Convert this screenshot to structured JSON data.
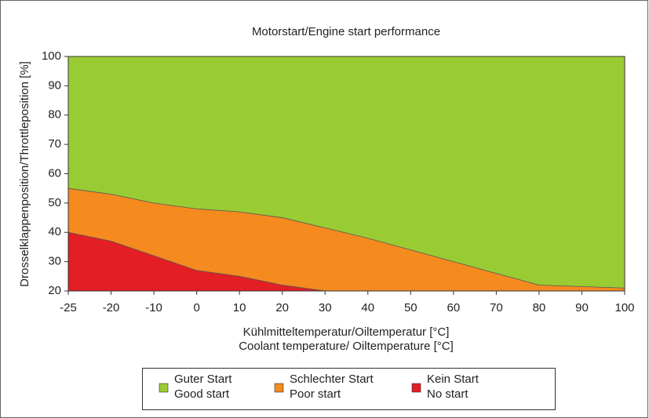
{
  "chart_data": {
    "type": "area",
    "title": "Motorstart/Engine start performance",
    "xlabel": [
      "Kühlmitteltemperatur/Oiltemperatur [°C]",
      "Coolant temperature/ Oiltemperature [°C]"
    ],
    "ylabel": "Drosselklappenposition/Throttleposition [%]",
    "categories": [
      "-25",
      "-20",
      "-10",
      "0",
      "10",
      "20",
      "30",
      "40",
      "50",
      "60",
      "70",
      "80",
      "90",
      "100"
    ],
    "series": [
      {
        "name": "Guter Start",
        "subname": "Good start",
        "color": "#99cc33",
        "values": [
          100,
          100,
          100,
          100,
          100,
          100,
          100,
          100,
          100,
          100,
          100,
          100,
          100,
          100
        ]
      },
      {
        "name": "Schlechter Start",
        "subname": "Poor start",
        "color": "#f58a1f",
        "values": [
          55,
          53,
          50,
          48,
          47,
          45,
          41.5,
          38,
          34,
          30,
          26,
          22,
          21.5,
          21
        ]
      },
      {
        "name": "Kein Start",
        "subname": "No start",
        "color": "#e31e24",
        "values": [
          40,
          37,
          32,
          27,
          25,
          22,
          20,
          20,
          20,
          20,
          20,
          20,
          20,
          20
        ]
      }
    ],
    "ylim": [
      20,
      100
    ],
    "yticks": [
      20,
      30,
      40,
      50,
      60,
      70,
      80,
      90,
      100
    ],
    "legend": "bottom"
  }
}
